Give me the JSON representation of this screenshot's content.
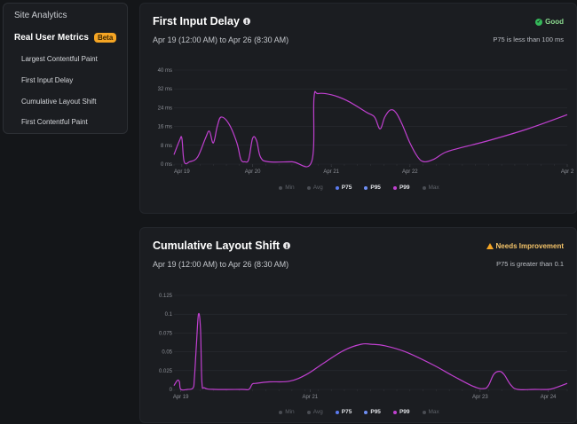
{
  "sidebar": {
    "title": "Site Analytics",
    "section_label": "Real User Metrics",
    "badge": "Beta",
    "items": [
      {
        "label": "Largest Contentful Paint"
      },
      {
        "label": "First Input Delay"
      },
      {
        "label": "Cumulative Layout Shift"
      },
      {
        "label": "First Contentful Paint"
      }
    ]
  },
  "cards": [
    {
      "title": "First Input Delay",
      "range": "Apr 19 (12:00 AM) to Apr 26 (8:30 AM)",
      "status": "Good",
      "threshold": "P75 is less than 100 ms"
    },
    {
      "title": "Cumulative Layout Shift",
      "range": "Apr 19 (12:00 AM) to Apr 26 (8:30 AM)",
      "status": "Needs Improvement",
      "threshold": "P75 is greater than 0.1"
    }
  ],
  "legend": [
    {
      "label": "Min",
      "active": false,
      "color": "#4a4d53"
    },
    {
      "label": "Avg",
      "active": false,
      "color": "#4a4d53"
    },
    {
      "label": "P75",
      "active": true,
      "color": "#5b7bf0"
    },
    {
      "label": "P95",
      "active": true,
      "color": "#6f8ff5"
    },
    {
      "label": "P99",
      "active": true,
      "color": "#c040d0"
    },
    {
      "label": "Max",
      "active": false,
      "color": "#4a4d53"
    }
  ],
  "colors": {
    "series": "#c040d0",
    "good": "#35b85a",
    "warn": "#f5a524"
  },
  "chart_data": [
    {
      "type": "line",
      "title": "First Input Delay",
      "y_ticks": [
        "0 ms",
        "8 ms",
        "16 ms",
        "24 ms",
        "32 ms",
        "40 ms"
      ],
      "ylim": [
        0,
        40
      ],
      "x_ticks": [
        {
          "label": "Apr 19",
          "x": 0.1
        },
        {
          "label": "Apr 20",
          "x": 1.0
        },
        {
          "label": "Apr 21",
          "x": 2.0
        },
        {
          "label": "Apr 22",
          "x": 3.0
        },
        {
          "label": "Apr 2",
          "x": 5.0
        }
      ],
      "xlim": [
        0,
        5.0
      ],
      "series": [
        {
          "name": "P99",
          "points": [
            [
              0.0,
              4
            ],
            [
              0.07,
              10
            ],
            [
              0.1,
              11
            ],
            [
              0.13,
              1
            ],
            [
              0.2,
              1
            ],
            [
              0.3,
              3
            ],
            [
              0.4,
              11
            ],
            [
              0.45,
              14
            ],
            [
              0.5,
              9
            ],
            [
              0.55,
              16
            ],
            [
              0.6,
              20
            ],
            [
              0.7,
              17
            ],
            [
              0.8,
              9
            ],
            [
              0.85,
              2
            ],
            [
              0.9,
              1
            ],
            [
              0.95,
              2
            ],
            [
              1.0,
              11
            ],
            [
              1.05,
              10
            ],
            [
              1.1,
              3
            ],
            [
              1.2,
              1
            ],
            [
              1.5,
              1
            ],
            [
              1.75,
              1
            ],
            [
              1.78,
              28
            ],
            [
              1.83,
              30
            ],
            [
              2.0,
              29.5
            ],
            [
              2.2,
              27
            ],
            [
              2.45,
              22
            ],
            [
              2.55,
              20
            ],
            [
              2.62,
              15
            ],
            [
              2.68,
              20
            ],
            [
              2.75,
              23
            ],
            [
              2.82,
              22
            ],
            [
              2.9,
              17
            ],
            [
              3.0,
              9
            ],
            [
              3.1,
              3
            ],
            [
              3.18,
              1
            ],
            [
              3.3,
              2
            ],
            [
              3.45,
              5
            ],
            [
              3.65,
              7
            ],
            [
              4.0,
              10
            ],
            [
              4.5,
              15
            ],
            [
              5.0,
              21
            ]
          ]
        }
      ]
    },
    {
      "type": "line",
      "title": "Cumulative Layout Shift",
      "y_ticks": [
        "0",
        "0.025",
        "0.05",
        "0.075",
        "0.1",
        "0.125"
      ],
      "ylim": [
        0,
        0.125
      ],
      "x_ticks": [
        {
          "label": "Apr 19",
          "x": 0.1
        },
        {
          "label": "Apr 21",
          "x": 2.0
        },
        {
          "label": "Apr 23",
          "x": 4.5
        },
        {
          "label": "Apr 24",
          "x": 5.5
        }
      ],
      "xlim": [
        0,
        5.78
      ],
      "series": [
        {
          "name": "P99",
          "points": [
            [
              0.0,
              0.005
            ],
            [
              0.05,
              0.012
            ],
            [
              0.08,
              0.01
            ],
            [
              0.1,
              0.0
            ],
            [
              0.2,
              0.0
            ],
            [
              0.28,
              0.002
            ],
            [
              0.3,
              0.015
            ],
            [
              0.33,
              0.06
            ],
            [
              0.36,
              0.1
            ],
            [
              0.39,
              0.08
            ],
            [
              0.41,
              0.01
            ],
            [
              0.45,
              0.002
            ],
            [
              0.6,
              0.0
            ],
            [
              1.0,
              0.0
            ],
            [
              1.1,
              0.0
            ],
            [
              1.15,
              0.007
            ],
            [
              1.2,
              0.008
            ],
            [
              1.4,
              0.01
            ],
            [
              1.7,
              0.011
            ],
            [
              1.95,
              0.02
            ],
            [
              2.2,
              0.035
            ],
            [
              2.5,
              0.052
            ],
            [
              2.75,
              0.06
            ],
            [
              2.9,
              0.06
            ],
            [
              3.1,
              0.058
            ],
            [
              3.4,
              0.05
            ],
            [
              3.8,
              0.033
            ],
            [
              4.1,
              0.018
            ],
            [
              4.4,
              0.004
            ],
            [
              4.55,
              0.001
            ],
            [
              4.62,
              0.005
            ],
            [
              4.7,
              0.02
            ],
            [
              4.78,
              0.024
            ],
            [
              4.85,
              0.02
            ],
            [
              4.95,
              0.006
            ],
            [
              5.05,
              0.0
            ],
            [
              5.3,
              0.0
            ],
            [
              5.5,
              0.0
            ],
            [
              5.6,
              0.002
            ],
            [
              5.78,
              0.008
            ]
          ]
        }
      ]
    }
  ]
}
